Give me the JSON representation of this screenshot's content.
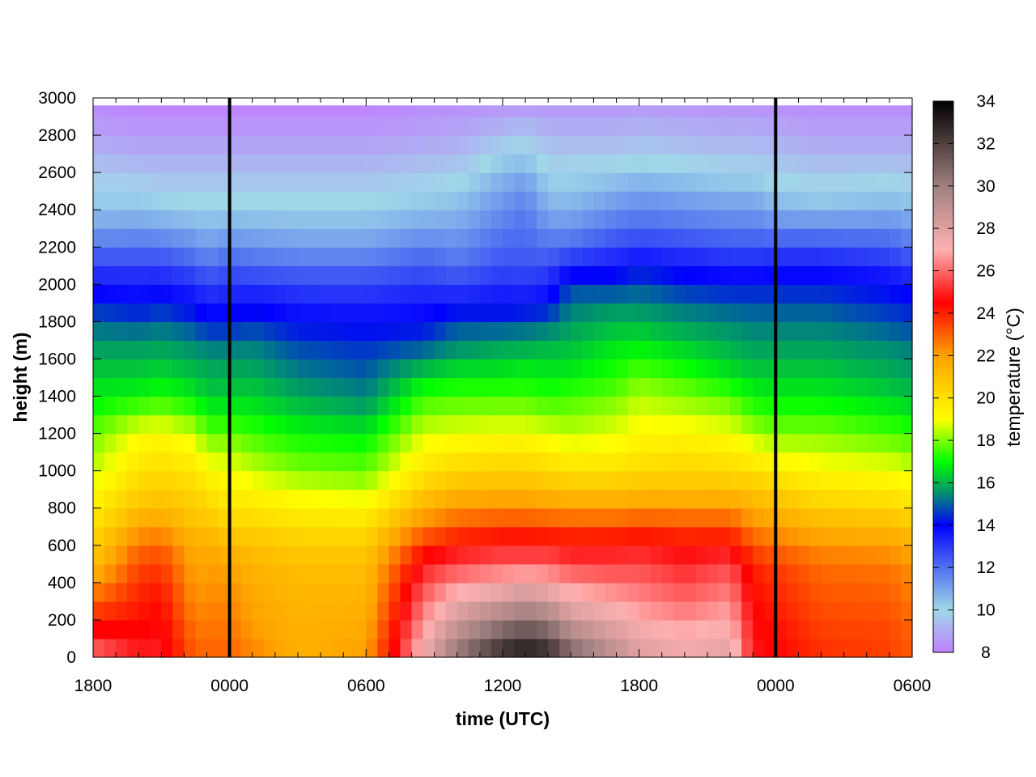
{
  "chart_data": {
    "type": "heatmap",
    "title": "",
    "xlabel": "time (UTC)",
    "ylabel": "height (m)",
    "colorbar_label": "temperature (°C)",
    "x_hours_range": [
      0,
      36
    ],
    "x_ticks": [
      {
        "hour": 0,
        "label": "1800"
      },
      {
        "hour": 6,
        "label": "0000"
      },
      {
        "hour": 12,
        "label": "0600"
      },
      {
        "hour": 18,
        "label": "1200"
      },
      {
        "hour": 24,
        "label": "1800"
      },
      {
        "hour": 30,
        "label": "0000"
      },
      {
        "hour": 36,
        "label": "0600"
      }
    ],
    "ylim": [
      0,
      3000
    ],
    "y_ticks": [
      0,
      200,
      400,
      600,
      800,
      1000,
      1200,
      1400,
      1600,
      1800,
      2000,
      2200,
      2400,
      2600,
      2800,
      3000
    ],
    "clim": [
      8,
      34
    ],
    "colorbar_ticks": [
      8,
      10,
      12,
      14,
      16,
      18,
      20,
      22,
      24,
      26,
      28,
      30,
      32,
      34
    ],
    "midnight_lines_hours": [
      6,
      30
    ],
    "colormap": [
      {
        "t": 8,
        "color": "#c080ff"
      },
      {
        "t": 10,
        "color": "#a0d8e8"
      },
      {
        "t": 12,
        "color": "#5070f0"
      },
      {
        "t": 14,
        "color": "#0000ff"
      },
      {
        "t": 15.3,
        "color": "#008080"
      },
      {
        "t": 17,
        "color": "#00ff00"
      },
      {
        "t": 19,
        "color": "#ffff00"
      },
      {
        "t": 22,
        "color": "#ffa000"
      },
      {
        "t": 24.5,
        "color": "#ff0000"
      },
      {
        "t": 27,
        "color": "#ffb0b0"
      },
      {
        "t": 30,
        "color": "#a08080"
      },
      {
        "t": 34,
        "color": "#000000"
      }
    ],
    "heights": [
      0,
      100,
      200,
      300,
      400,
      500,
      600,
      700,
      800,
      900,
      1000,
      1100,
      1200,
      1300,
      1400,
      1500,
      1600,
      1700,
      1800,
      1900,
      2000,
      2100,
      2200,
      2300,
      2400,
      2500,
      2600,
      2700,
      2800,
      2900,
      3000
    ],
    "sample_hours": [
      0,
      2,
      3,
      4.5,
      5,
      6,
      7,
      9,
      12,
      14.5,
      16,
      18,
      19,
      20,
      21,
      23,
      24,
      26,
      28,
      29,
      30,
      32,
      35,
      36
    ],
    "temperature_profiles": [
      [
        26.5,
        25.0,
        24.0,
        23.0,
        22.0,
        21.0,
        20.5,
        20.0,
        19.5,
        19.0,
        18.5,
        18.2,
        17.8,
        17.2,
        16.8,
        16.4,
        16.0,
        15.5,
        15.0,
        14.3,
        13.6,
        12.8,
        12.0,
        11.0,
        10.5,
        10.0,
        9.6,
        9.2,
        8.8,
        8.5,
        8.2
      ],
      [
        25.0,
        24.6,
        24.3,
        24.0,
        23.8,
        23.3,
        22.8,
        21.8,
        21.0,
        20.4,
        19.9,
        19.4,
        19.0,
        18.0,
        17.0,
        16.4,
        16.0,
        15.5,
        14.8,
        14.0,
        13.5,
        12.8,
        12.0,
        11.2,
        10.5,
        10.0,
        9.5,
        9.0,
        8.6,
        8.3,
        8.0
      ],
      [
        25.0,
        24.8,
        24.5,
        24.3,
        24.0,
        23.5,
        23.0,
        22.0,
        21.2,
        20.6,
        20.1,
        19.6,
        19.2,
        18.2,
        17.2,
        16.6,
        16.1,
        15.6,
        15.0,
        14.2,
        13.6,
        12.8,
        12.0,
        11.0,
        10.4,
        9.8,
        9.4,
        9.0,
        8.6,
        8.3,
        8.0
      ],
      [
        23.0,
        22.8,
        22.5,
        22.2,
        22.0,
        21.8,
        21.5,
        21.0,
        20.6,
        20.2,
        19.8,
        19.2,
        18.6,
        17.6,
        16.8,
        16.2,
        15.8,
        15.3,
        14.6,
        13.8,
        13.2,
        12.4,
        11.5,
        10.8,
        10.2,
        9.8,
        9.4,
        9.0,
        8.6,
        8.3,
        8.0
      ],
      [
        23.0,
        22.8,
        22.6,
        22.4,
        22.2,
        22.0,
        21.6,
        21.0,
        20.4,
        19.8,
        19.2,
        18.5,
        17.8,
        17.0,
        16.3,
        16.0,
        15.7,
        15.0,
        14.2,
        13.5,
        12.8,
        12.0,
        11.2,
        10.6,
        10.2,
        9.8,
        9.4,
        9.0,
        8.6,
        8.3,
        8.0
      ],
      [
        23.0,
        22.8,
        22.6,
        22.4,
        22.2,
        21.8,
        21.2,
        20.4,
        19.8,
        19.4,
        19.0,
        18.4,
        17.8,
        17.0,
        16.4,
        16.0,
        15.6,
        15.0,
        14.2,
        13.6,
        13.0,
        12.4,
        11.6,
        10.8,
        10.2,
        9.8,
        9.4,
        9.0,
        8.6,
        8.3,
        8.0
      ],
      [
        22.5,
        22.2,
        22.0,
        21.8,
        21.6,
        21.3,
        21.0,
        20.4,
        19.8,
        19.2,
        18.6,
        18.0,
        17.5,
        16.9,
        16.4,
        16.0,
        15.6,
        15.2,
        14.4,
        13.8,
        13.0,
        12.2,
        11.4,
        10.8,
        10.2,
        9.8,
        9.4,
        9.0,
        8.6,
        8.3,
        8.0
      ],
      [
        21.5,
        21.5,
        21.4,
        21.3,
        21.2,
        21.0,
        20.6,
        20.0,
        19.4,
        18.8,
        18.0,
        17.5,
        17.0,
        16.4,
        15.9,
        15.4,
        15.0,
        14.6,
        14.0,
        13.4,
        12.8,
        12.0,
        11.2,
        10.6,
        10.2,
        9.8,
        9.4,
        9.0,
        8.6,
        8.3,
        8.0
      ],
      [
        22.0,
        21.8,
        21.6,
        21.4,
        21.2,
        21.0,
        20.6,
        20.0,
        19.3,
        18.5,
        17.8,
        17.3,
        16.8,
        16.0,
        15.4,
        15.0,
        14.7,
        14.4,
        13.9,
        13.3,
        12.8,
        12.0,
        11.2,
        10.6,
        10.2,
        9.8,
        9.4,
        9.0,
        8.6,
        8.3,
        8.0
      ],
      [
        27.5,
        27.0,
        26.5,
        26.0,
        25.5,
        24.8,
        23.8,
        22.5,
        21.5,
        20.5,
        19.8,
        19.2,
        18.7,
        18.0,
        17.4,
        16.5,
        15.5,
        14.6,
        14.0,
        13.6,
        13.0,
        12.4,
        11.8,
        11.0,
        10.5,
        10.0,
        9.6,
        9.2,
        8.8,
        8.5,
        8.2
      ],
      [
        30.5,
        29.5,
        28.5,
        27.5,
        26.5,
        25.5,
        24.5,
        23.2,
        22.2,
        21.2,
        20.3,
        19.6,
        18.9,
        18.2,
        17.5,
        16.9,
        16.0,
        15.2,
        14.8,
        13.6,
        12.8,
        12.0,
        11.5,
        11.0,
        10.6,
        10.2,
        9.7,
        9.3,
        8.9,
        8.6,
        8.3
      ],
      [
        33.0,
        31.5,
        30.0,
        28.5,
        27.0,
        26.0,
        24.8,
        23.5,
        22.4,
        21.3,
        20.5,
        19.8,
        19.0,
        18.3,
        17.5,
        16.9,
        16.2,
        15.6,
        14.6,
        13.8,
        13.2,
        12.6,
        12.2,
        11.8,
        11.4,
        11.0,
        10.6,
        10.0,
        9.4,
        8.8,
        8.4
      ],
      [
        33.5,
        32.0,
        30.5,
        29.0,
        27.5,
        26.0,
        24.8,
        23.5,
        22.4,
        21.3,
        20.5,
        19.8,
        19.0,
        18.3,
        17.5,
        17.0,
        16.4,
        15.6,
        14.8,
        13.8,
        13.0,
        12.6,
        12.2,
        12.0,
        11.8,
        11.4,
        10.8,
        10.2,
        9.6,
        9.0,
        8.5
      ],
      [
        33.0,
        31.5,
        30.0,
        28.5,
        27.0,
        26.0,
        24.8,
        23.4,
        22.2,
        21.0,
        20.2,
        19.5,
        18.8,
        18.0,
        17.3,
        16.8,
        16.4,
        15.8,
        15.0,
        14.0,
        13.4,
        12.6,
        12.0,
        11.4,
        10.8,
        10.4,
        10.0,
        9.6,
        9.2,
        8.8,
        8.4
      ],
      [
        31.0,
        30.0,
        28.5,
        27.5,
        26.5,
        25.5,
        24.5,
        23.4,
        22.0,
        20.8,
        20.0,
        19.2,
        18.5,
        18.0,
        17.5,
        16.9,
        16.4,
        16.0,
        15.6,
        15.2,
        14.6,
        13.4,
        12.2,
        11.4,
        10.8,
        10.4,
        10.0,
        9.6,
        9.2,
        8.8,
        8.4
      ],
      [
        29.0,
        28.5,
        27.5,
        27.0,
        26.0,
        25.5,
        24.6,
        23.4,
        22.0,
        20.8,
        20.0,
        19.3,
        18.8,
        18.4,
        17.8,
        17.3,
        17.0,
        16.5,
        16.0,
        15.4,
        14.5,
        13.6,
        12.8,
        12.0,
        11.4,
        10.8,
        10.2,
        9.6,
        9.2,
        8.8,
        8.4
      ],
      [
        28.0,
        27.8,
        27.0,
        26.5,
        26.0,
        25.5,
        24.8,
        23.6,
        22.2,
        21.0,
        20.2,
        19.6,
        19.2,
        18.8,
        18.4,
        17.8,
        17.2,
        16.6,
        16.0,
        15.4,
        14.8,
        14.0,
        13.0,
        12.2,
        11.6,
        11.0,
        10.4,
        9.8,
        9.3,
        8.9,
        8.5
      ],
      [
        27.5,
        27.2,
        26.5,
        26.0,
        25.5,
        25.0,
        24.4,
        23.4,
        22.2,
        21.0,
        20.4,
        19.8,
        19.3,
        18.6,
        18.0,
        17.4,
        16.8,
        16.2,
        15.6,
        15.0,
        14.4,
        13.6,
        12.8,
        12.0,
        11.4,
        10.8,
        10.2,
        9.6,
        9.2,
        8.8,
        8.4
      ],
      [
        28.0,
        27.5,
        27.0,
        26.5,
        26.0,
        25.5,
        24.6,
        23.4,
        22.2,
        21.0,
        20.2,
        19.6,
        19.0,
        18.3,
        17.6,
        16.8,
        16.2,
        15.8,
        15.4,
        14.8,
        14.2,
        13.4,
        12.6,
        11.8,
        11.2,
        10.6,
        10.0,
        9.5,
        9.1,
        8.7,
        8.3
      ],
      [
        24.8,
        24.8,
        24.6,
        24.4,
        24.2,
        24.0,
        23.2,
        22.4,
        21.6,
        20.8,
        20.0,
        19.2,
        18.4,
        17.6,
        17.0,
        16.4,
        16.0,
        15.6,
        15.2,
        14.8,
        14.2,
        13.4,
        12.6,
        11.8,
        11.2,
        10.6,
        10.0,
        9.5,
        9.1,
        8.7,
        8.3
      ],
      [
        24.5,
        24.4,
        24.2,
        24.0,
        23.8,
        23.5,
        22.8,
        22.0,
        21.2,
        20.4,
        19.6,
        18.8,
        18.0,
        17.4,
        16.8,
        16.4,
        16.0,
        15.6,
        15.2,
        14.8,
        14.2,
        13.6,
        12.6,
        11.6,
        10.8,
        10.2,
        9.8,
        9.4,
        9.0,
        8.6,
        8.3
      ],
      [
        23.8,
        23.6,
        23.4,
        23.2,
        23.0,
        22.8,
        22.2,
        21.4,
        20.6,
        19.8,
        19.2,
        18.6,
        18.0,
        17.4,
        16.8,
        16.4,
        16.0,
        15.6,
        15.2,
        14.8,
        14.2,
        13.6,
        12.6,
        11.6,
        10.6,
        10.0,
        9.6,
        9.2,
        8.8,
        8.5,
        8.2
      ],
      [
        23.5,
        23.5,
        23.3,
        23.1,
        22.9,
        22.6,
        22.0,
        21.2,
        20.4,
        19.6,
        19.0,
        18.3,
        17.6,
        17.0,
        16.4,
        16.0,
        15.7,
        15.3,
        14.8,
        14.4,
        13.9,
        13.2,
        12.4,
        11.6,
        10.8,
        10.2,
        9.7,
        9.2,
        8.8,
        8.5,
        8.2
      ],
      [
        23.0,
        23.0,
        22.8,
        22.6,
        22.4,
        22.2,
        21.6,
        20.8,
        20.0,
        19.3,
        18.7,
        18.0,
        17.4,
        16.8,
        16.2,
        15.8,
        15.5,
        15.1,
        14.6,
        14.2,
        13.6,
        12.8,
        12.0,
        11.2,
        10.6,
        10.0,
        9.6,
        9.2,
        8.8,
        8.5,
        8.2
      ]
    ]
  }
}
